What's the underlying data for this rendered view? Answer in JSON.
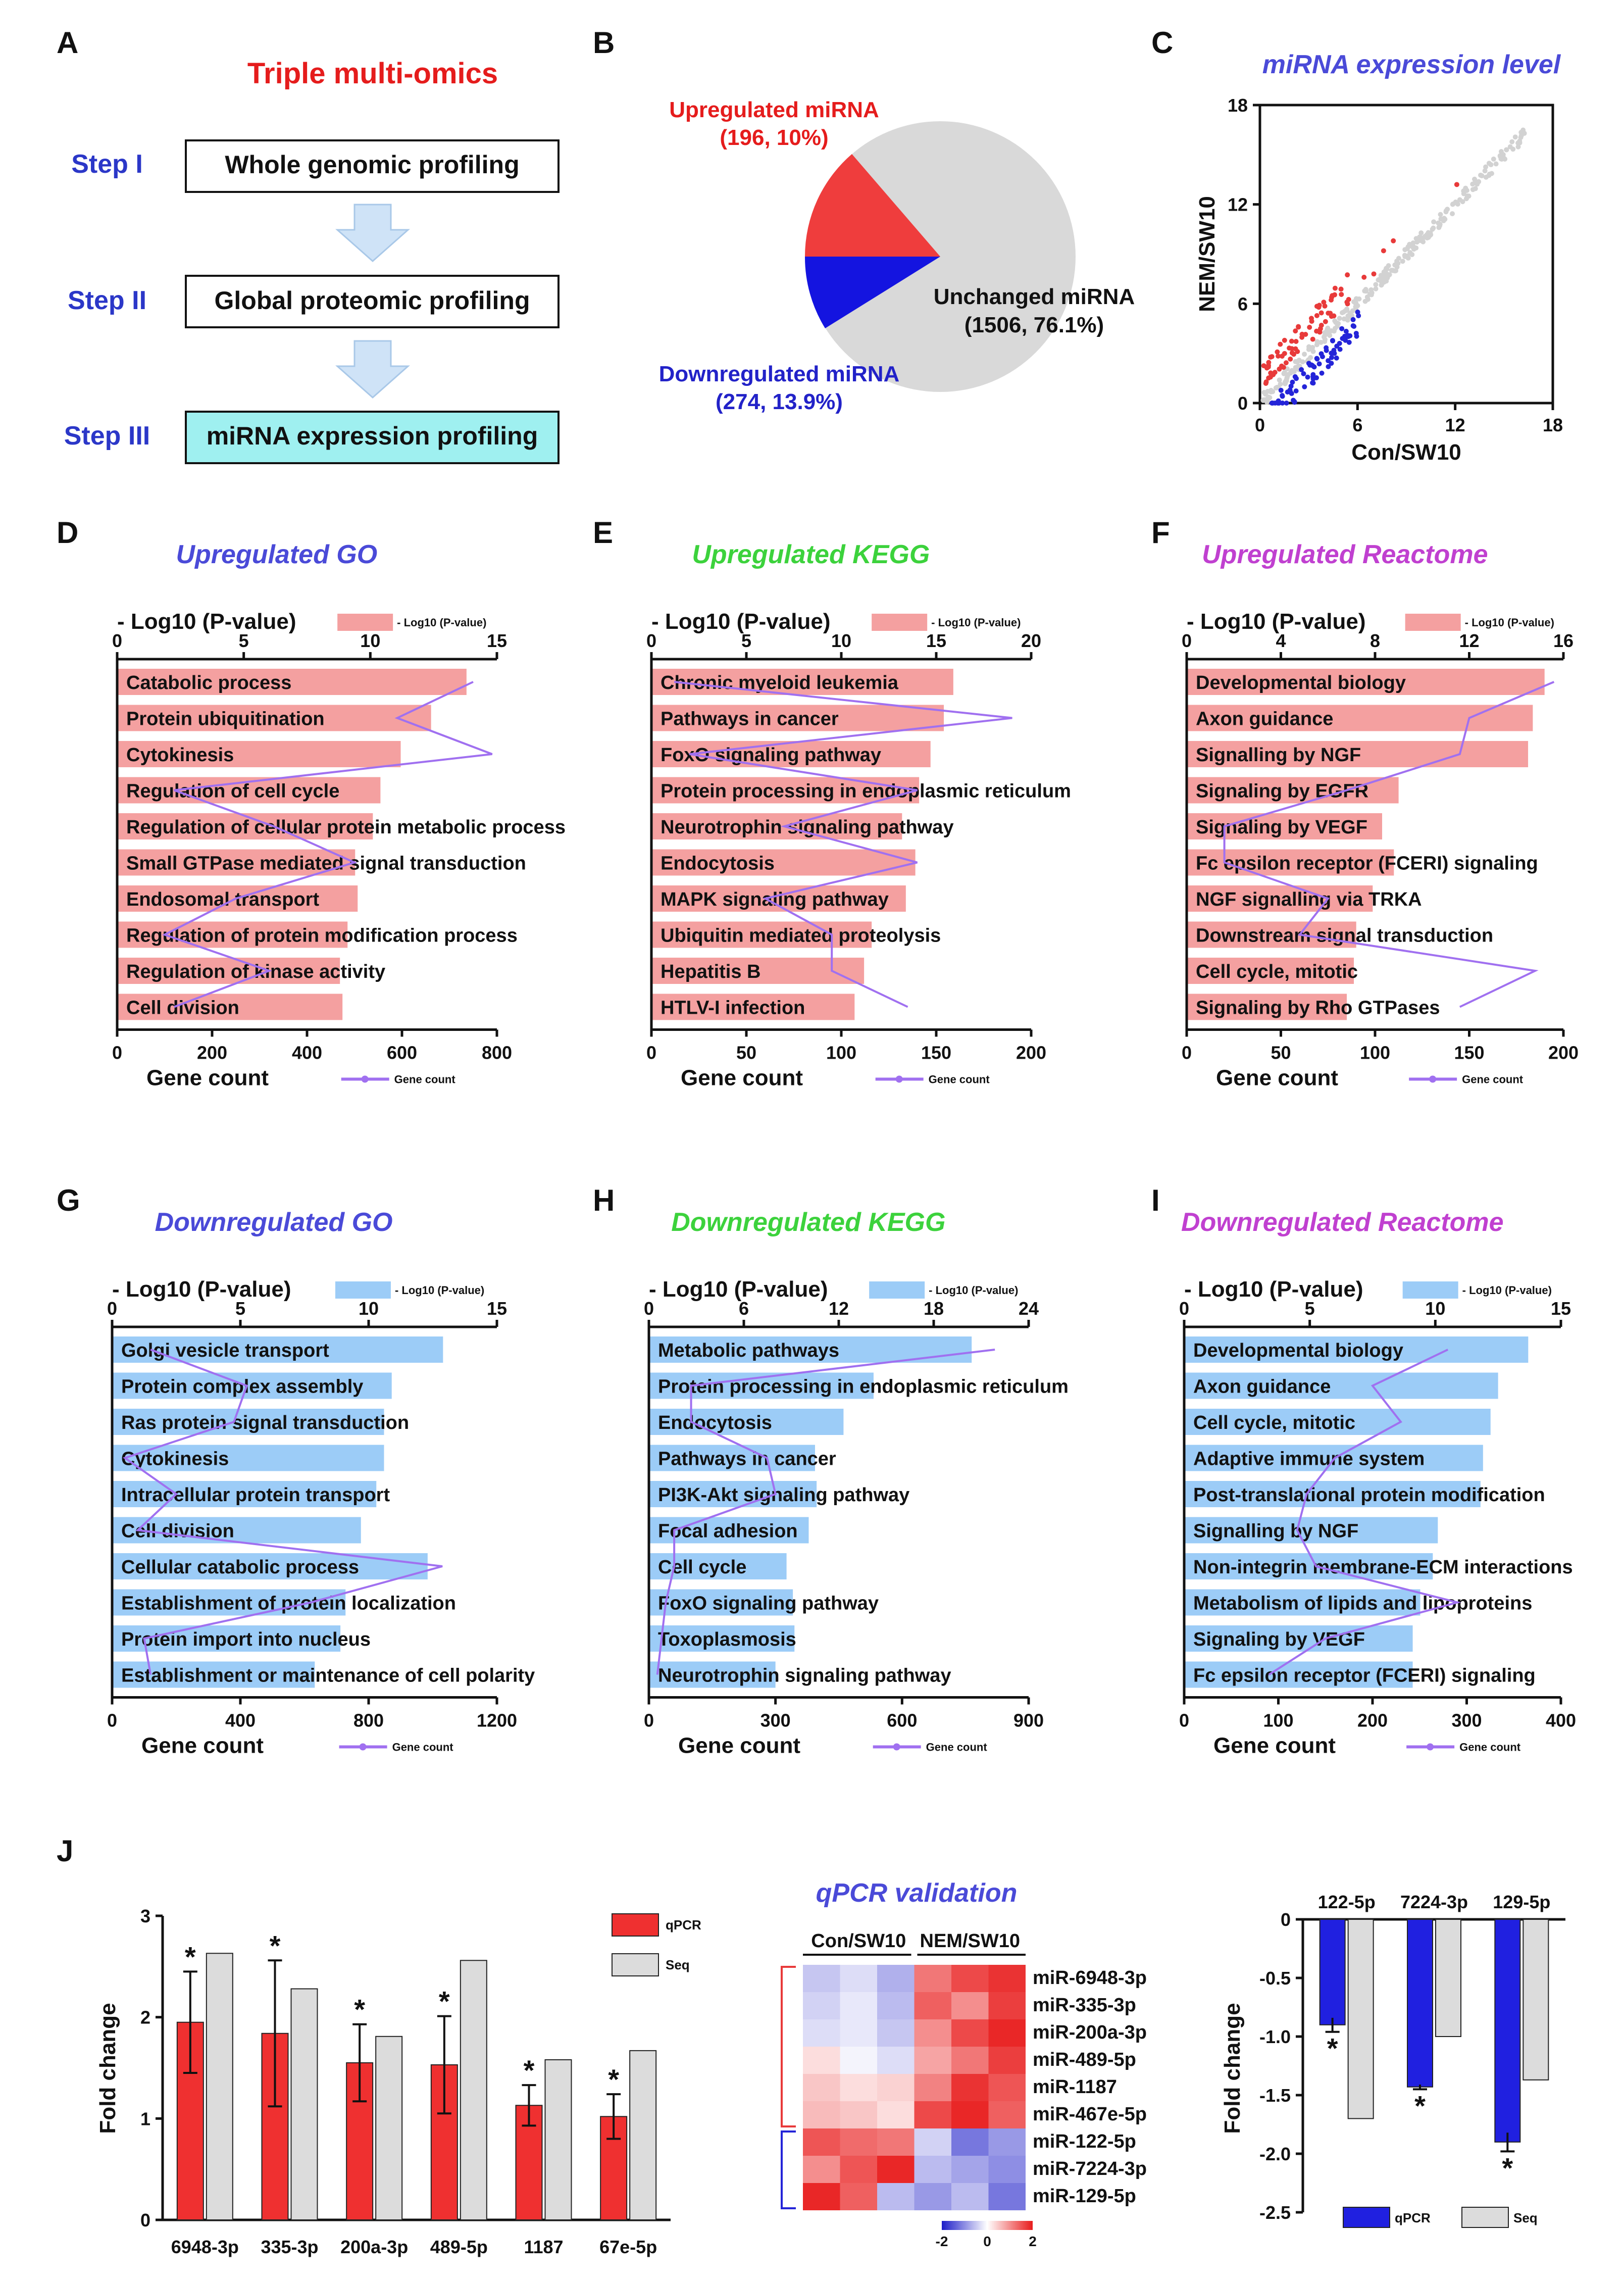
{
  "colors": {
    "red_bar": "#f4a0a0",
    "blue_bar": "#9cccf7",
    "line": "#a070f0",
    "go": "#4a4ad8",
    "kegg": "#3cd23c",
    "reactome": "#c040d0",
    "up_red": "#e83a3a",
    "down_blue": "#2424d8",
    "grey": "#d8d8d8",
    "title_red": "#e51c1c"
  },
  "panelA": {
    "letter": "A",
    "title": "Triple multi-omics",
    "steps": [
      {
        "label": "Step I",
        "box": "Whole genomic profiling"
      },
      {
        "label": "Step II",
        "box": "Global proteomic profiling"
      },
      {
        "label": "Step III",
        "box": "miRNA expression profiling"
      }
    ]
  },
  "panelB": {
    "letter": "B",
    "up_label": "Upregulated miRNA",
    "up_detail": "(196, 10%)",
    "down_label": "Downregulated miRNA",
    "down_detail": "(274, 13.9%)",
    "unch_label": "Unchanged miRNA",
    "unch_detail": "(1506, 76.1%)"
  },
  "panelC": {
    "letter": "C",
    "title": "miRNA expression level",
    "xlabel": "Con/SW10",
    "ylabel": "NEM/SW10",
    "ticks": [
      "0",
      "6",
      "12",
      "18"
    ]
  },
  "enrich_common": {
    "top_axis_label": "- Log10 (P-value)",
    "legend_bar": "- Log10 (P-value)",
    "bottom_axis_label": "Gene count",
    "legend_line": "Gene count"
  },
  "chart_data": [
    {
      "id": "D",
      "type": "bar",
      "title": "Upregulated GO",
      "categories": [
        "Catabolic process",
        "Protein ubiquitination",
        "Cytokinesis",
        "Regulation of cell cycle",
        "Regulation of cellular protein metabolic process",
        "Small GTPase mediated signal transduction",
        "Endosomal transport",
        "Regulation of protein modification process",
        "Regulation of kinase activity",
        "Cell division"
      ],
      "pvalues": [
        13.8,
        12.4,
        11.2,
        10.4,
        10.1,
        9.4,
        9.5,
        9.1,
        8.8,
        8.9
      ],
      "pticks": [
        0,
        5,
        10,
        15
      ],
      "pmax": 15,
      "counts": [
        750,
        590,
        790,
        120,
        330,
        500,
        250,
        100,
        320,
        120
      ],
      "cticks": [
        0,
        200,
        400,
        600,
        800
      ],
      "cmax": 800
    },
    {
      "id": "E",
      "type": "bar",
      "title": "Upregulated KEGG",
      "categories": [
        "Chronic myeloid leukemia",
        "Pathways in cancer",
        "FoxO signaling pathway",
        "Protein processing in endoplasmic reticulum",
        "Neurotrophin signaling pathway",
        "Endocytosis",
        "MAPK signaling pathway",
        "Ubiquitin mediated proteolysis",
        "Hepatitis B",
        "HTLV-I infection"
      ],
      "pvalues": [
        15.9,
        15.4,
        14.7,
        14.1,
        13.2,
        13.9,
        13.4,
        11.6,
        11.2,
        10.7
      ],
      "pticks": [
        0,
        5,
        10,
        15,
        20
      ],
      "pmax": 20,
      "counts": [
        12,
        190,
        20,
        140,
        70,
        140,
        60,
        95,
        95,
        135
      ],
      "cticks": [
        0,
        50,
        100,
        150,
        200
      ],
      "cmax": 200
    },
    {
      "id": "F",
      "type": "bar",
      "title": "Upregulated Reactome",
      "categories": [
        "Developmental biology",
        "Axon guidance",
        "Signalling by NGF",
        "Signaling by EGFR",
        "Signaling by VEGF",
        "Fc epsilon receptor (FCERI) signaling",
        "NGF signalling via TRKA",
        "Downstream signal transduction",
        "Cell cycle, mitotic",
        "Signaling by Rho GTPases"
      ],
      "pvalues": [
        15.2,
        14.7,
        14.5,
        9.0,
        8.3,
        8.8,
        7.9,
        7.2,
        7.1,
        6.8
      ],
      "pticks": [
        0,
        4,
        8,
        12,
        16
      ],
      "pmax": 16,
      "counts": [
        195,
        150,
        145,
        85,
        20,
        20,
        75,
        60,
        185,
        145
      ],
      "cticks": [
        0,
        50,
        100,
        150,
        200
      ],
      "cmax": 200
    },
    {
      "id": "G",
      "type": "bar",
      "title": "Downregulated GO",
      "categories": [
        "Golgi vesicle transport",
        "Protein complex assembly",
        "Ras protein signal transduction",
        "Cytokinesis",
        "Intracellular protein transport",
        "Cell division",
        "Cellular catabolic process",
        "Establishment of protein localization",
        "Protein import into nucleus",
        "Establishment or maintenance of cell polarity"
      ],
      "pvalues": [
        12.9,
        10.9,
        10.6,
        10.6,
        10.3,
        9.7,
        12.3,
        9.1,
        8.9,
        7.9
      ],
      "pticks": [
        0,
        5,
        10,
        15
      ],
      "pmax": 15,
      "counts": [
        120,
        420,
        380,
        40,
        200,
        80,
        1030,
        620,
        100,
        120
      ],
      "cticks": [
        0,
        400,
        800,
        1200
      ],
      "cmax": 1200
    },
    {
      "id": "H",
      "type": "bar",
      "title": "Downregulated KEGG",
      "categories": [
        "Metabolic pathways",
        "Protein processing in endoplasmic reticulum",
        "Endocytosis",
        "Pathways in cancer",
        "PI3K-Akt signaling pathway",
        "Focal adhesion",
        "Cell cycle",
        "FoxO signaling pathway",
        "Toxoplasmosis",
        "Neurotrophin signaling pathway"
      ],
      "pvalues": [
        20.4,
        14.2,
        12.3,
        10.5,
        10.6,
        10.1,
        8.7,
        9.1,
        9.2,
        8.0
      ],
      "pticks": [
        0,
        6,
        12,
        18,
        24
      ],
      "pmax": 24,
      "counts": [
        820,
        100,
        100,
        280,
        300,
        60,
        60,
        40,
        30,
        20
      ],
      "cticks": [
        0,
        300,
        600,
        900
      ],
      "cmax": 900
    },
    {
      "id": "I",
      "type": "bar",
      "title": "Downregulated Reactome",
      "categories": [
        "Developmental biology",
        "Axon guidance",
        "Cell cycle, mitotic",
        "Adaptive immune system",
        "Post-translational protein modification",
        "Signalling by NGF",
        "Non-integrin membrane-ECM interactions",
        "Metabolism of lipids and lipoproteins",
        "Signaling by VEGF",
        "Fc epsilon receptor (FCERI) signaling"
      ],
      "pvalues": [
        13.7,
        12.5,
        12.2,
        11.9,
        11.8,
        10.1,
        9.9,
        9.4,
        9.1,
        9.1
      ],
      "pticks": [
        0,
        5,
        10,
        15
      ],
      "pmax": 15,
      "counts": [
        280,
        200,
        230,
        160,
        130,
        120,
        140,
        290,
        150,
        90
      ],
      "cticks": [
        0,
        100,
        200,
        300,
        400
      ],
      "cmax": 400
    },
    {
      "id": "J1",
      "type": "bar",
      "ylabel": "Fold change",
      "categories": [
        "6948-3p",
        "335-3p",
        "200a-3p",
        "489-5p",
        "1187",
        "67e-5p"
      ],
      "series": [
        {
          "name": "qPCR",
          "values": [
            1.95,
            1.84,
            1.55,
            1.53,
            1.13,
            1.02
          ],
          "err": [
            0.5,
            0.72,
            0.38,
            0.48,
            0.2,
            0.22
          ]
        },
        {
          "name": "Seq",
          "values": [
            2.63,
            2.28,
            1.81,
            2.56,
            1.58,
            1.67
          ]
        }
      ],
      "ylim": [
        0,
        3
      ],
      "yticks": [
        0,
        1,
        2,
        3
      ],
      "sig": "*"
    },
    {
      "id": "J2",
      "type": "heatmap",
      "title": "qPCR validation",
      "groups": [
        "Con/SW10",
        "NEM/SW10"
      ],
      "rows": [
        "miR-6948-3p",
        "miR-335-3p",
        "miR-200a-3p",
        "miR-489-5p",
        "miR-1187",
        "miR-467e-5p",
        "miR-122-5p",
        "miR-7224-3p",
        "miR-129-5p"
      ],
      "values": [
        [
          -0.5,
          -0.3,
          -0.7,
          1.2,
          1.6,
          1.8
        ],
        [
          -0.4,
          -0.2,
          -0.6,
          1.4,
          1.0,
          1.7
        ],
        [
          -0.3,
          -0.2,
          -0.5,
          1.0,
          1.6,
          1.9
        ],
        [
          0.3,
          -0.1,
          -0.3,
          0.8,
          1.2,
          1.7
        ],
        [
          0.5,
          0.3,
          0.4,
          1.1,
          1.8,
          1.5
        ],
        [
          0.6,
          0.5,
          0.3,
          1.6,
          1.9,
          1.4
        ],
        [
          1.5,
          1.3,
          1.2,
          -0.4,
          -1.2,
          -0.9
        ],
        [
          1.0,
          1.5,
          1.9,
          -0.6,
          -0.8,
          -1.0
        ],
        [
          1.9,
          1.4,
          -0.6,
          -0.9,
          -0.6,
          -1.2
        ]
      ],
      "scale_ticks": [
        "-2",
        "0",
        "2"
      ],
      "vmin": -2,
      "vmax": 2
    },
    {
      "id": "J3",
      "type": "bar",
      "ylabel": "Fold change",
      "categories": [
        "122-5p",
        "7224-3p",
        "129-5p"
      ],
      "series": [
        {
          "name": "qPCR",
          "values": [
            -0.9,
            -1.43,
            -1.9
          ],
          "err": [
            0.06,
            0.02,
            0.08
          ]
        },
        {
          "name": "Seq",
          "values": [
            -1.7,
            -1.0,
            -1.37
          ]
        }
      ],
      "ylim": [
        -2.5,
        0
      ],
      "yticks": [
        "0",
        "-0.5",
        "-1.0",
        "-1.5",
        "-2.0",
        "-2.5"
      ],
      "sig": "*"
    }
  ]
}
